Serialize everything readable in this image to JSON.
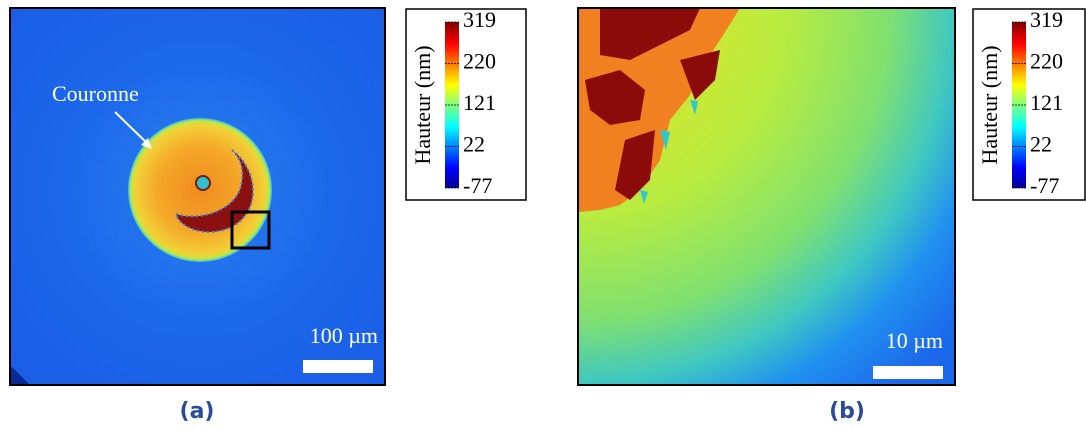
{
  "panels": [
    {
      "caption": "(a)",
      "annotation": "Couronne",
      "scale_bar": "100 µm",
      "colorbar": {
        "label": "Hauteur (nm)",
        "lim": [
          -77,
          319
        ],
        "ticks": [
          319,
          220,
          121,
          22,
          -77
        ]
      }
    },
    {
      "caption": "(b)",
      "scale_bar": "10 µm",
      "colorbar": {
        "label": "Hauteur (nm)",
        "lim": [
          -77,
          319
        ],
        "ticks": [
          319,
          220,
          121,
          22,
          -77
        ]
      }
    }
  ]
}
